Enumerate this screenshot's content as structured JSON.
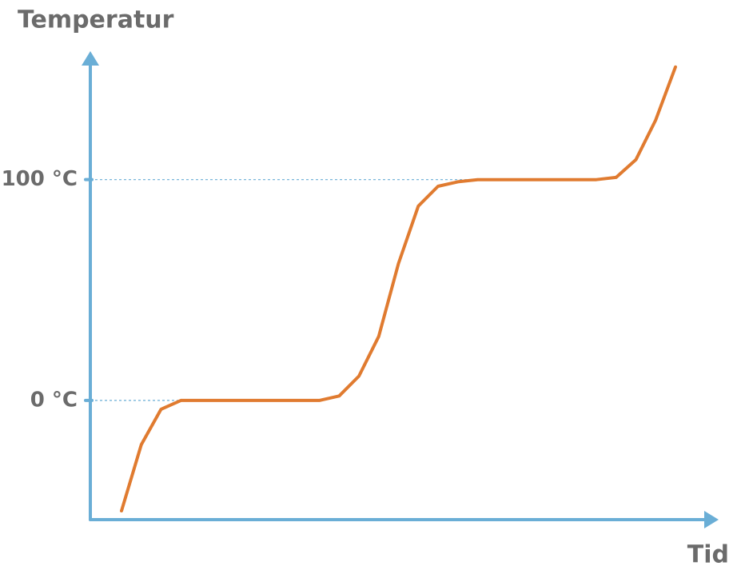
{
  "chart_data": {
    "type": "line",
    "y_label": "Temperatur",
    "x_label": "Tid",
    "categories": [
      null,
      null,
      null,
      null,
      null,
      null,
      null,
      null,
      null,
      null,
      null,
      null,
      null,
      null,
      null,
      null,
      null,
      null,
      null,
      null,
      null,
      null,
      null,
      null,
      null,
      null,
      null,
      null,
      null
    ],
    "series": [
      {
        "color": "#e07b30",
        "values": [
          -50,
          -20,
          -4,
          0,
          0,
          0,
          0,
          0,
          0,
          0,
          0,
          2,
          11,
          29,
          62,
          88,
          97,
          99,
          100,
          100,
          100,
          100,
          100,
          100,
          100,
          101,
          109,
          127,
          151
        ]
      }
    ],
    "ylim": [
      -54,
      156
    ],
    "yticks": [
      {
        "value": 0,
        "label": "0 °C"
      },
      {
        "value": 100,
        "label": "100 °C"
      }
    ],
    "axis_color": "#6aaed6",
    "grid": true
  }
}
